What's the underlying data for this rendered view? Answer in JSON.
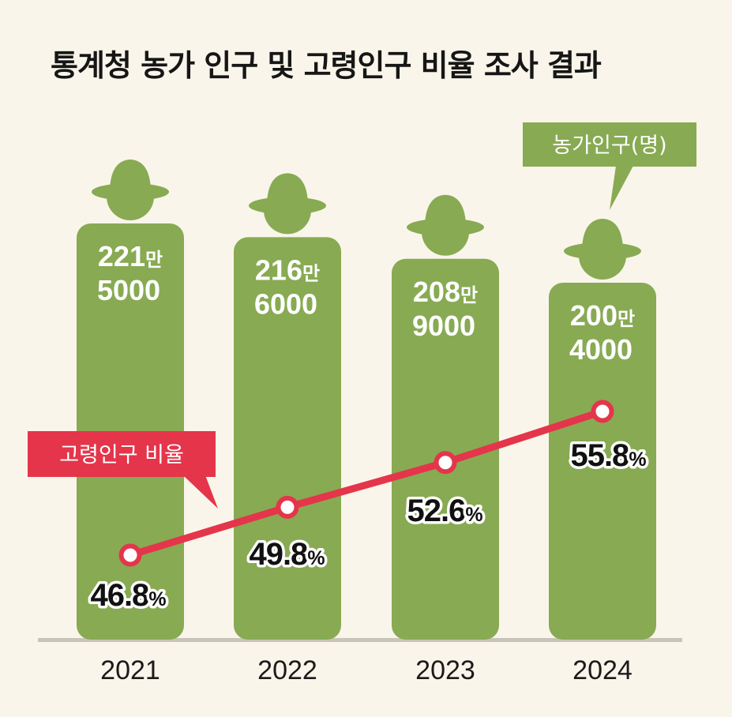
{
  "title": "통계청 농가 인구 및 고령인구 비율 조사 결과",
  "legend": {
    "farm_population": "농가인구(명)",
    "elderly_ratio": "고령인구 비율"
  },
  "colors": {
    "background": "#faf5ea",
    "bar": "#88aa53",
    "line": "#e4354b",
    "bar_text": "#ffffff",
    "label_text": "#111111"
  },
  "chart_data": {
    "type": "bar",
    "categories": [
      "2021",
      "2022",
      "2023",
      "2024"
    ],
    "series": [
      {
        "name": "농가인구(명)",
        "type": "bar",
        "values": [
          2215000,
          2166000,
          2089000,
          2004000
        ],
        "labels": [
          {
            "line1": "221",
            "unit": "만",
            "line2": "5000"
          },
          {
            "line1": "216",
            "unit": "만",
            "line2": "6000"
          },
          {
            "line1": "208",
            "unit": "만",
            "line2": "9000"
          },
          {
            "line1": "200",
            "unit": "만",
            "line2": "4000"
          }
        ]
      },
      {
        "name": "고령인구 비율",
        "type": "line",
        "values": [
          46.8,
          49.8,
          52.6,
          55.8
        ],
        "labels": [
          "46.8",
          "49.8",
          "52.6",
          "55.8"
        ],
        "unit": "%"
      }
    ],
    "grid": false
  }
}
